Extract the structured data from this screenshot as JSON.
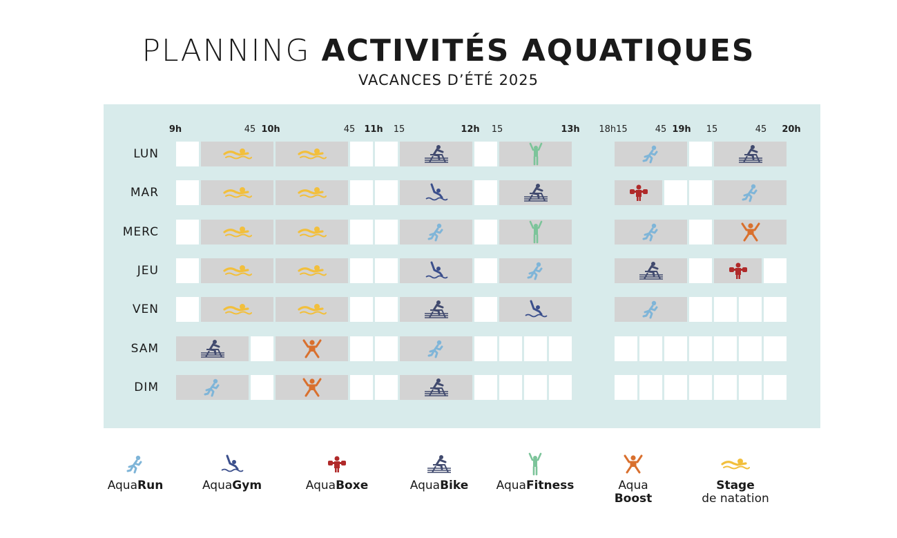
{
  "title": {
    "light": "PLANNING",
    "bold": "ACTIVITÉS AQUATIQUES"
  },
  "subtitle": "VACANCES D’ÉTÉ 2025",
  "colors": {
    "board": "#d8ebeb",
    "aquarun": "#7fb5d8",
    "aquagym": "#3b4f8c",
    "aquaboxe": "#b02a2a",
    "aquabike": "#414a6e",
    "aquafitness": "#7cc49a",
    "aquaboost": "#d9702e",
    "stage": "#f2bf3c"
  },
  "time_ticks": [
    {
      "label": "9h",
      "bold": true
    },
    {
      "label": "45",
      "bold": false
    },
    {
      "label": "10h",
      "bold": true
    },
    {
      "label": "45",
      "bold": false
    },
    {
      "label": "11h",
      "bold": true
    },
    {
      "label": "15",
      "bold": false
    },
    {
      "label": "12h",
      "bold": true
    },
    {
      "label": "15",
      "bold": false
    },
    {
      "label": "13h",
      "bold": true
    },
    {
      "label": "18h15",
      "bold": false
    },
    {
      "label": "45",
      "bold": false
    },
    {
      "label": "19h",
      "bold": true
    },
    {
      "label": "15",
      "bold": false
    },
    {
      "label": "45",
      "bold": false
    },
    {
      "label": "20h",
      "bold": true
    }
  ],
  "days": [
    {
      "label": "LUN",
      "cells": [
        {
          "span": 1,
          "activity": null
        },
        {
          "span": 3,
          "activity": "stage"
        },
        {
          "span": 3,
          "activity": "stage"
        },
        {
          "span": 1,
          "activity": null
        },
        {
          "span": 1,
          "activity": null
        },
        {
          "span": 3,
          "activity": "aquabike"
        },
        {
          "span": 1,
          "activity": null
        },
        {
          "span": 3,
          "activity": "aquafitness"
        },
        {
          "span": 3,
          "activity": "aquarun"
        },
        {
          "span": 1,
          "activity": null
        },
        {
          "span": 3,
          "activity": "aquabike"
        }
      ]
    },
    {
      "label": "MAR",
      "cells": [
        {
          "span": 1,
          "activity": null
        },
        {
          "span": 3,
          "activity": "stage"
        },
        {
          "span": 3,
          "activity": "stage"
        },
        {
          "span": 1,
          "activity": null
        },
        {
          "span": 1,
          "activity": null
        },
        {
          "span": 3,
          "activity": "aquagym"
        },
        {
          "span": 1,
          "activity": null
        },
        {
          "span": 3,
          "activity": "aquabike"
        },
        {
          "span": 2,
          "activity": "aquaboxe"
        },
        {
          "span": 1,
          "activity": null
        },
        {
          "span": 1,
          "activity": null
        },
        {
          "span": 3,
          "activity": "aquarun"
        }
      ]
    },
    {
      "label": "MERC",
      "cells": [
        {
          "span": 1,
          "activity": null
        },
        {
          "span": 3,
          "activity": "stage"
        },
        {
          "span": 3,
          "activity": "stage"
        },
        {
          "span": 1,
          "activity": null
        },
        {
          "span": 1,
          "activity": null
        },
        {
          "span": 3,
          "activity": "aquarun"
        },
        {
          "span": 1,
          "activity": null
        },
        {
          "span": 3,
          "activity": "aquafitness"
        },
        {
          "span": 3,
          "activity": "aquarun"
        },
        {
          "span": 1,
          "activity": null
        },
        {
          "span": 3,
          "activity": "aquaboost"
        }
      ]
    },
    {
      "label": "JEU",
      "cells": [
        {
          "span": 1,
          "activity": null
        },
        {
          "span": 3,
          "activity": "stage"
        },
        {
          "span": 3,
          "activity": "stage"
        },
        {
          "span": 1,
          "activity": null
        },
        {
          "span": 1,
          "activity": null
        },
        {
          "span": 3,
          "activity": "aquagym"
        },
        {
          "span": 1,
          "activity": null
        },
        {
          "span": 3,
          "activity": "aquarun"
        },
        {
          "span": 3,
          "activity": "aquabike"
        },
        {
          "span": 1,
          "activity": null
        },
        {
          "span": 2,
          "activity": "aquaboxe"
        },
        {
          "span": 1,
          "activity": null
        }
      ]
    },
    {
      "label": "VEN",
      "cells": [
        {
          "span": 1,
          "activity": null
        },
        {
          "span": 3,
          "activity": "stage"
        },
        {
          "span": 3,
          "activity": "stage"
        },
        {
          "span": 1,
          "activity": null
        },
        {
          "span": 1,
          "activity": null
        },
        {
          "span": 3,
          "activity": "aquabike"
        },
        {
          "span": 1,
          "activity": null
        },
        {
          "span": 3,
          "activity": "aquagym"
        },
        {
          "span": 3,
          "activity": "aquarun"
        },
        {
          "span": 1,
          "activity": null
        },
        {
          "span": 1,
          "activity": null
        },
        {
          "span": 1,
          "activity": null
        },
        {
          "span": 1,
          "activity": null
        }
      ]
    },
    {
      "label": "SAM",
      "cells": [
        {
          "span": 3,
          "activity": "aquabike"
        },
        {
          "span": 1,
          "activity": null
        },
        {
          "span": 3,
          "activity": "aquaboost"
        },
        {
          "span": 1,
          "activity": null
        },
        {
          "span": 1,
          "activity": null
        },
        {
          "span": 3,
          "activity": "aquarun"
        },
        {
          "span": 1,
          "activity": null
        },
        {
          "span": 1,
          "activity": null
        },
        {
          "span": 1,
          "activity": null
        },
        {
          "span": 1,
          "activity": null
        },
        {
          "span": 1,
          "activity": null
        },
        {
          "span": 1,
          "activity": null
        },
        {
          "span": 1,
          "activity": null
        },
        {
          "span": 1,
          "activity": null
        },
        {
          "span": 1,
          "activity": null
        },
        {
          "span": 1,
          "activity": null
        },
        {
          "span": 1,
          "activity": null
        }
      ]
    },
    {
      "label": "DIM",
      "cells": [
        {
          "span": 3,
          "activity": "aquarun"
        },
        {
          "span": 1,
          "activity": null
        },
        {
          "span": 3,
          "activity": "aquaboost"
        },
        {
          "span": 1,
          "activity": null
        },
        {
          "span": 1,
          "activity": null
        },
        {
          "span": 3,
          "activity": "aquabike"
        },
        {
          "span": 1,
          "activity": null
        },
        {
          "span": 1,
          "activity": null
        },
        {
          "span": 1,
          "activity": null
        },
        {
          "span": 1,
          "activity": null
        },
        {
          "span": 1,
          "activity": null
        },
        {
          "span": 1,
          "activity": null
        },
        {
          "span": 1,
          "activity": null
        },
        {
          "span": 1,
          "activity": null
        },
        {
          "span": 1,
          "activity": null
        },
        {
          "span": 1,
          "activity": null
        },
        {
          "span": 1,
          "activity": null
        }
      ]
    }
  ],
  "legend": [
    {
      "key": "aquarun",
      "light": "Aqua",
      "bold": "Run"
    },
    {
      "key": "aquagym",
      "light": "Aqua",
      "bold": "Gym"
    },
    {
      "key": "aquaboxe",
      "light": "Aqua",
      "bold": "Boxe"
    },
    {
      "key": "aquabike",
      "light": "Aqua",
      "bold": "Bike"
    },
    {
      "key": "aquafitness",
      "light": "Aqua",
      "bold": "Fitness"
    },
    {
      "key": "aquaboost",
      "light": "Aqua",
      "bold": "Boost"
    },
    {
      "key": "stage",
      "light": "de natation",
      "bold": "Stage"
    }
  ]
}
